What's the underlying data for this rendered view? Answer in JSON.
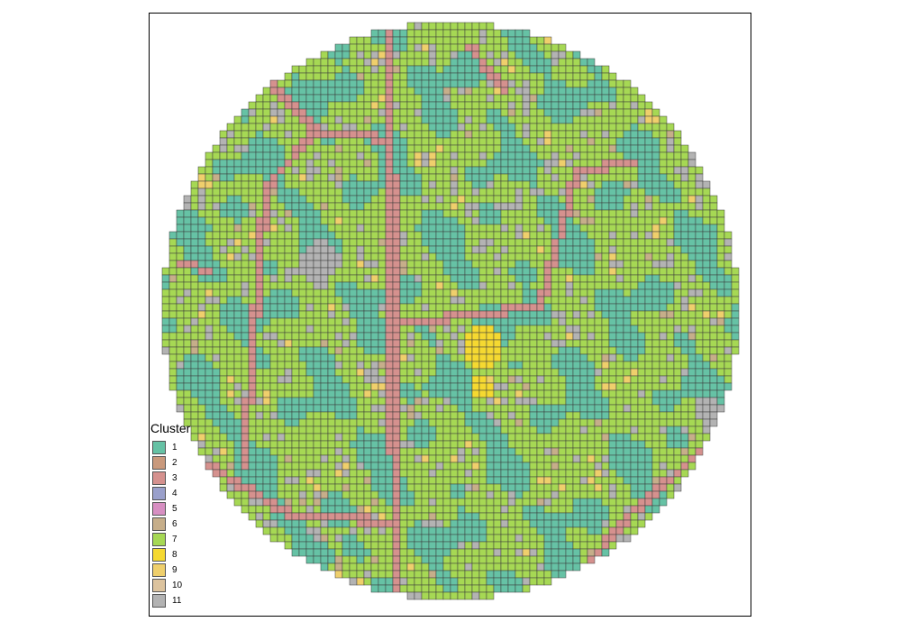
{
  "legend": {
    "title": "Cluster",
    "items": [
      {
        "label": "1",
        "color": "#66C2A5"
      },
      {
        "label": "2",
        "color": "#C9997C"
      },
      {
        "label": "3",
        "color": "#D5918E"
      },
      {
        "label": "4",
        "color": "#9AA0CB"
      },
      {
        "label": "5",
        "color": "#D78FC2"
      },
      {
        "label": "6",
        "color": "#C6AE8A"
      },
      {
        "label": "7",
        "color": "#A6D854"
      },
      {
        "label": "8",
        "color": "#F5D931"
      },
      {
        "label": "9",
        "color": "#EFCF6C"
      },
      {
        "label": "10",
        "color": "#DCC39E"
      },
      {
        "label": "11",
        "color": "#B3B3B3"
      }
    ]
  }
}
